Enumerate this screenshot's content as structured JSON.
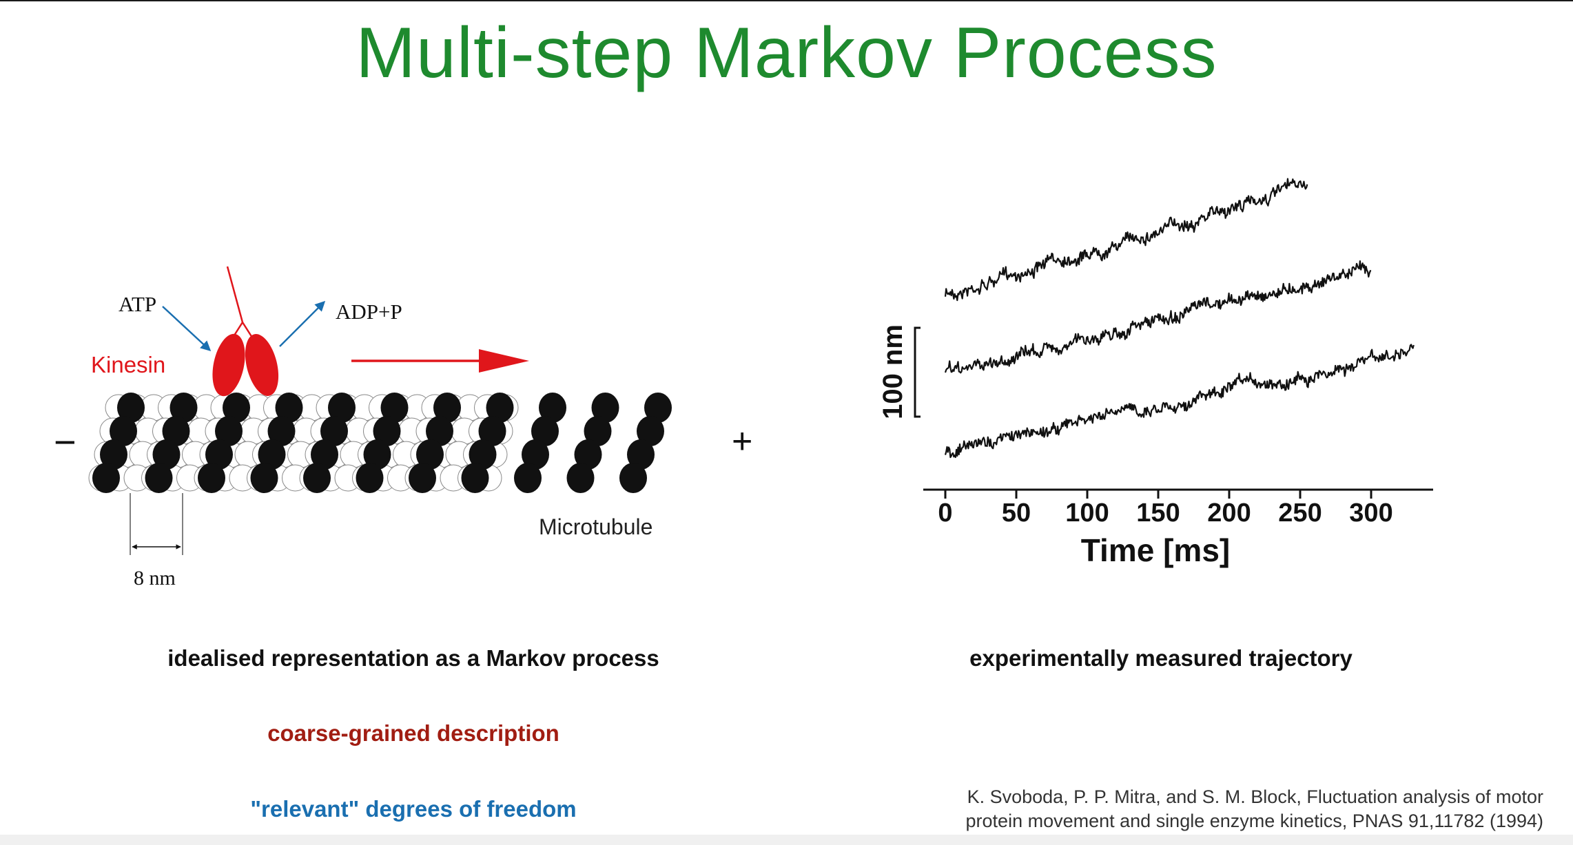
{
  "slide": {
    "title": "Multi-step Markov Process",
    "caption_left": "idealised representation as a Markov process",
    "caption_right": "experimentally measured trajectory",
    "coarse_label": "coarse-grained description",
    "relevant_label": "\"relevant\" degrees of freedom",
    "reference_line1": "K. Svoboda, P. P. Mitra, and S. M. Block, Fluctuation analysis of motor",
    "reference_line2": "protein movement and single enzyme kinetics, PNAS 91,11782 (1994)"
  },
  "diagram": {
    "atp_label": "ATP",
    "adp_label": "ADP+P",
    "kinesin_label": "Kinesin",
    "minus_label": "−",
    "plus_label": "+",
    "microtubule_label": "Microtubule",
    "step_label": "8 nm",
    "colors": {
      "kinesin": "#e0161b",
      "arrow_blue": "#1a6fb0",
      "arrow_red": "#e0161b",
      "tubulin_dark": "#111111"
    }
  },
  "chart_data": {
    "type": "line",
    "xlabel": "Time [ms]",
    "scale_bar_label": "100 nm",
    "x_ticks": [
      "0",
      "50",
      "100",
      "150",
      "200",
      "250",
      "300"
    ],
    "series": [
      {
        "x_start": 0,
        "x_end": 255,
        "y_start_nm": 0,
        "y_end_nm": 150
      },
      {
        "x_start": 0,
        "x_end": 300,
        "y_start_nm": 0,
        "y_end_nm": 145
      },
      {
        "x_start": 0,
        "x_end": 330,
        "y_start_nm": 0,
        "y_end_nm": 135
      }
    ]
  }
}
